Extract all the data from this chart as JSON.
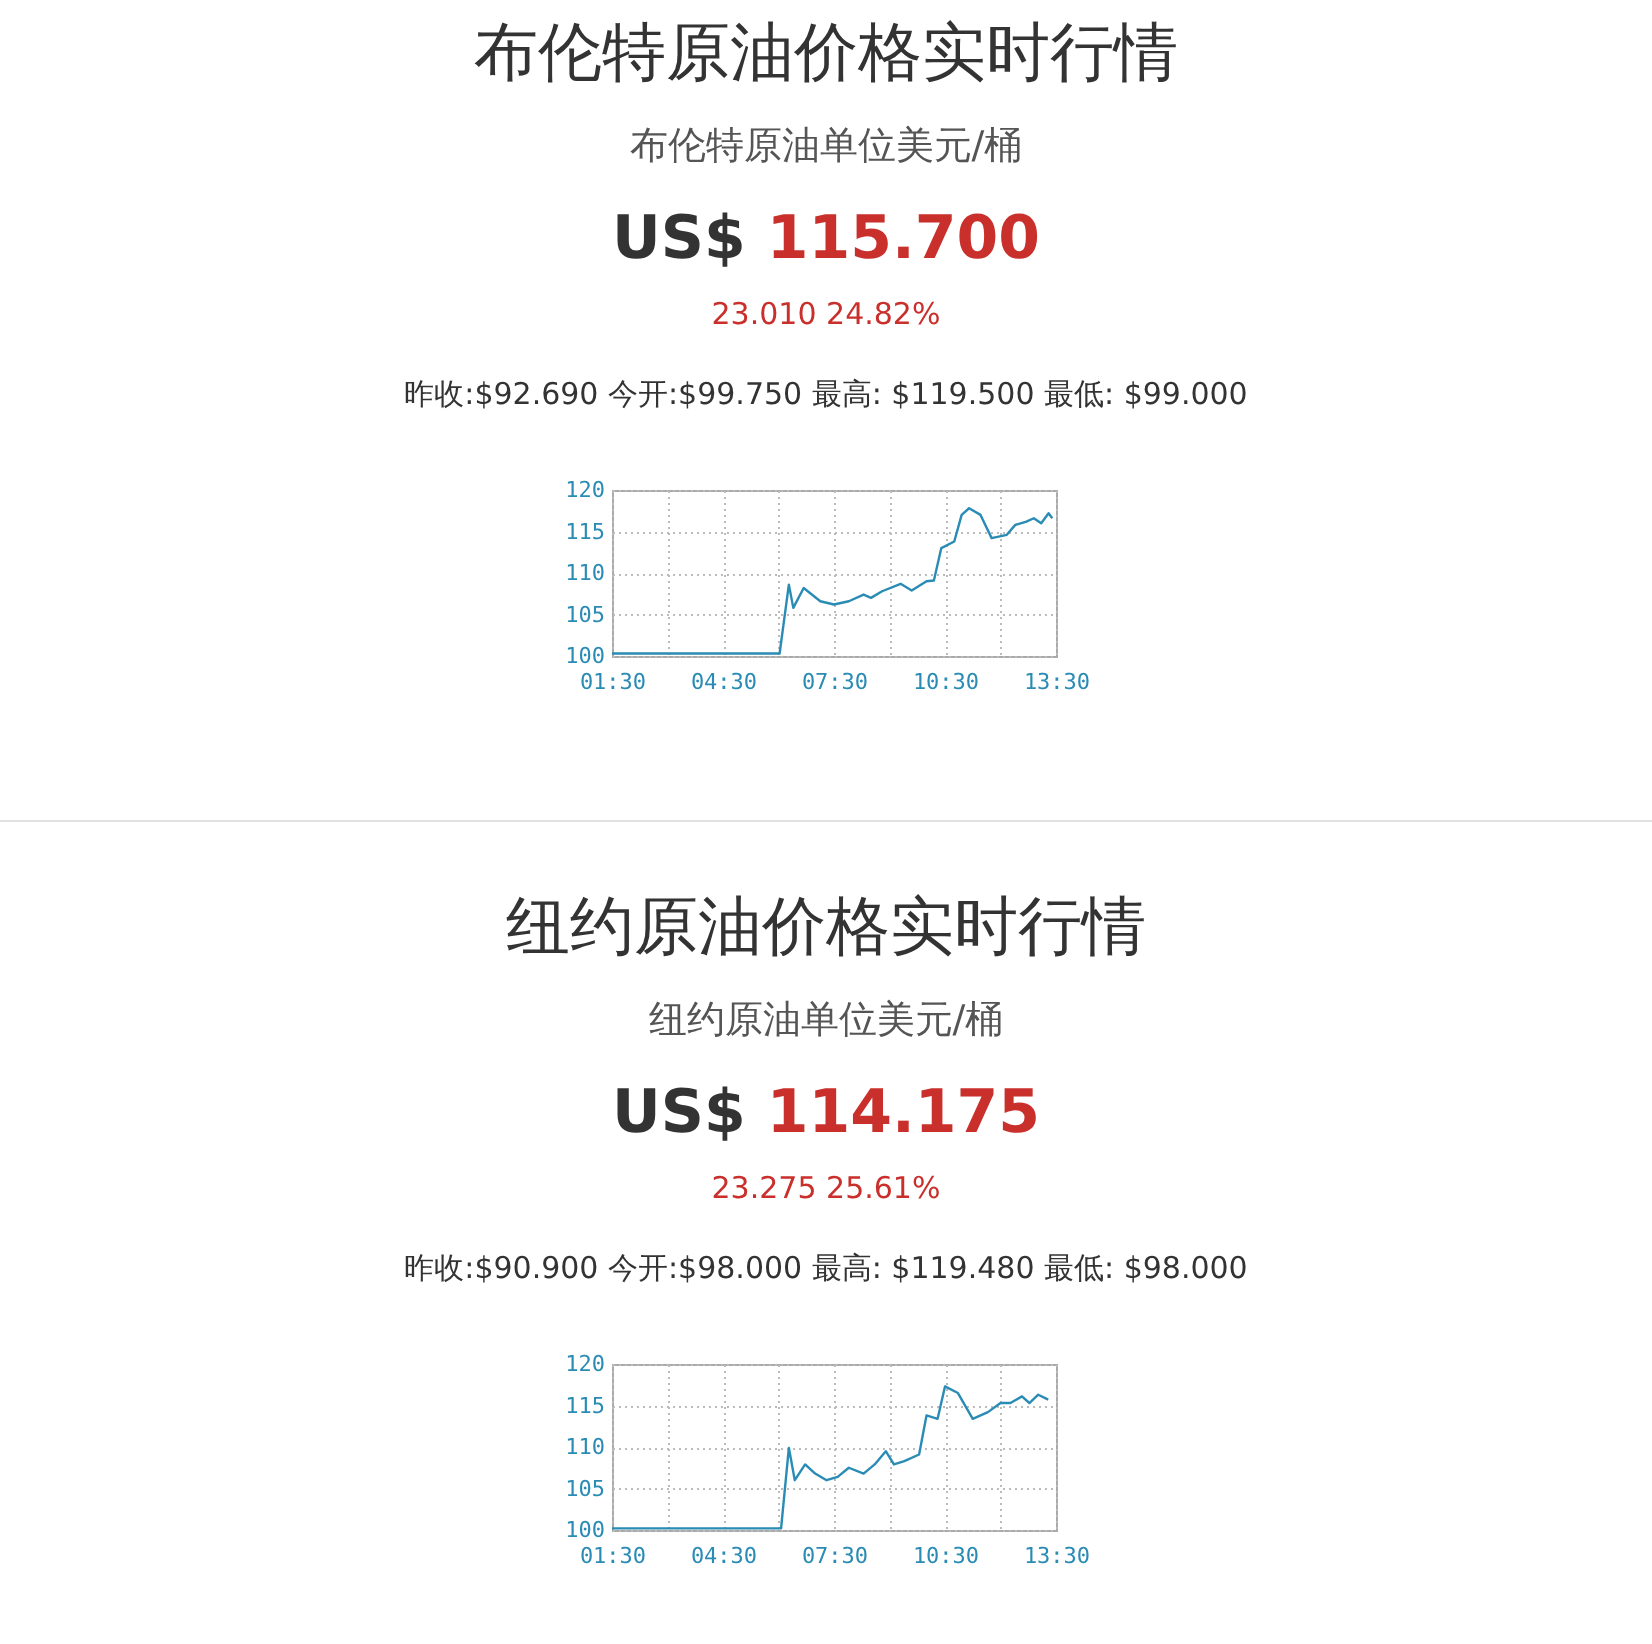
{
  "chart_data": [
    {
      "type": "line",
      "title": "布伦特原油价格实时行情",
      "subtitle": "布伦特原油单位美元/桶",
      "annotations": [
        "US$",
        "115.700",
        "23.010 24.82%",
        "昨收:$92.690 今开:$99.750 最高: $119.500 最低: $99.000"
      ],
      "xlim": [
        1.5,
        13.5
      ],
      "xticks": [
        {
          "value": 1.5,
          "label": "01:30"
        },
        {
          "value": 3,
          "label": null
        },
        {
          "value": 4.5,
          "label": "04:30"
        },
        {
          "value": 6,
          "label": null
        },
        {
          "value": 7.5,
          "label": "07:30"
        },
        {
          "value": 9,
          "label": null
        },
        {
          "value": 10.5,
          "label": "10:30"
        },
        {
          "value": 12,
          "label": null
        },
        {
          "value": 13.5,
          "label": "13:30"
        }
      ],
      "ylim": [
        100,
        120
      ],
      "yticks": [
        100,
        105,
        110,
        115,
        120
      ],
      "grid": true,
      "marker": "none",
      "line_style": "solid",
      "series": [
        {
          "color": "#2a8cb4",
          "x": [
            1.5,
            6.03,
            6.28,
            6.4,
            6.68,
            7.13,
            7.5,
            7.9,
            8.3,
            8.5,
            8.8,
            9.3,
            9.6,
            10.0,
            10.2,
            10.4,
            10.75,
            10.95,
            11.15,
            11.46,
            11.76,
            12.17,
            12.4,
            12.7,
            12.9,
            13.1,
            13.3,
            13.4
          ],
          "values": [
            100.3,
            100.3,
            108.6,
            105.8,
            108.2,
            106.6,
            106.2,
            106.6,
            107.4,
            107.0,
            107.8,
            108.7,
            107.9,
            109.0,
            109.1,
            113.0,
            113.8,
            117.0,
            117.8,
            117.0,
            114.2,
            114.6,
            115.8,
            116.2,
            116.6,
            116.0,
            117.2,
            116.6
          ]
        }
      ]
    },
    {
      "type": "line",
      "title": "纽约原油价格实时行情",
      "subtitle": "纽约原油单位美元/桶",
      "annotations": [
        "US$",
        "114.175",
        "23.275 25.61%",
        "昨收:$90.900 今开:$98.000 最高: $119.480 最低: $98.000"
      ],
      "xlim": [
        1.5,
        13.5
      ],
      "xticks": [
        {
          "value": 1.5,
          "label": "01:30"
        },
        {
          "value": 3,
          "label": null
        },
        {
          "value": 4.5,
          "label": "04:30"
        },
        {
          "value": 6,
          "label": null
        },
        {
          "value": 7.5,
          "label": "07:30"
        },
        {
          "value": 9,
          "label": null
        },
        {
          "value": 10.5,
          "label": "10:30"
        },
        {
          "value": 12,
          "label": null
        },
        {
          "value": 13.5,
          "label": "13:30"
        }
      ],
      "ylim": [
        100,
        120
      ],
      "yticks": [
        100,
        105,
        110,
        115,
        120
      ],
      "grid": true,
      "marker": "none",
      "line_style": "solid",
      "series": [
        {
          "color": "#2a8cb4",
          "x": [
            1.5,
            6.07,
            6.28,
            6.44,
            6.72,
            6.99,
            7.3,
            7.6,
            7.9,
            8.3,
            8.6,
            8.9,
            9.12,
            9.4,
            9.8,
            10.0,
            10.3,
            10.5,
            10.85,
            11.25,
            11.66,
            12.0,
            12.27,
            12.58,
            12.78,
            13.02,
            13.29
          ],
          "values": [
            100.2,
            100.2,
            109.9,
            106.0,
            107.9,
            106.8,
            106.0,
            106.4,
            107.5,
            106.8,
            107.9,
            109.5,
            107.9,
            108.3,
            109.1,
            113.8,
            113.4,
            117.3,
            116.5,
            113.4,
            114.2,
            115.3,
            115.3,
            116.1,
            115.3,
            116.3,
            115.7
          ]
        }
      ]
    }
  ]
}
